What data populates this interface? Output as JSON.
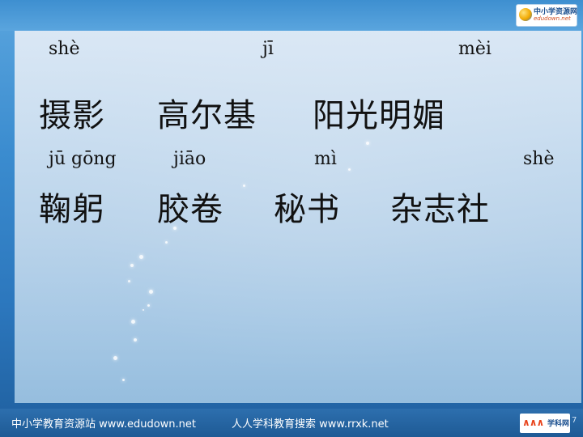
{
  "header": {
    "logo_title": "中小学资源网",
    "logo_subtitle": "edudown.net"
  },
  "row1": {
    "pinyin": [
      "shè",
      "jī",
      "mèi"
    ],
    "words": [
      "摄影",
      "高尔基",
      "阳光明媚"
    ]
  },
  "row2": {
    "pinyin": [
      "jū gōng",
      "jiāo",
      "mì",
      "shè"
    ],
    "words": [
      "鞠躬",
      "胶卷",
      "秘书",
      "杂志社"
    ]
  },
  "footer": {
    "left_text": "中小学教育资源站 www.edudown.net",
    "middle_text": "人人学科教育搜索 www.rrxk.net",
    "logo_text": "学科网",
    "page_number": "7"
  },
  "colors": {
    "background": "#2f7fc6",
    "panel": "#dce9f5",
    "text": "#111111",
    "footer_text": "#ffffff"
  }
}
